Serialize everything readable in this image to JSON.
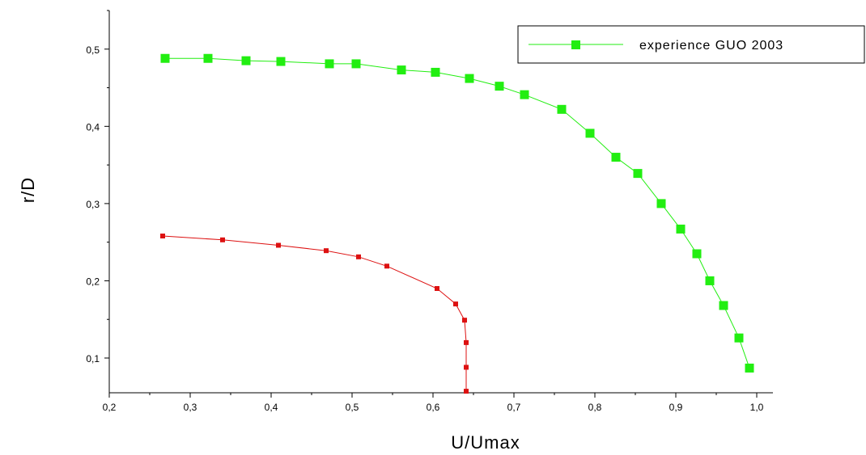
{
  "chart_data": {
    "type": "line",
    "xlabel": "U/Umax",
    "ylabel": "r/D",
    "xlim": [
      0.2,
      1.0
    ],
    "ylim": [
      0.055,
      0.55
    ],
    "x_ticks": [
      "0,2",
      "0,3",
      "0,4",
      "0,5",
      "0,6",
      "0,7",
      "0,8",
      "0,9",
      "1,0"
    ],
    "y_ticks": [
      "0,1",
      "0,2",
      "0,3",
      "0,4",
      "0,5"
    ],
    "grid": false,
    "legend_position": "top-right",
    "series": [
      {
        "name": "experience GUO 2003",
        "color": "#22ee11",
        "marker": "square-large",
        "points": [
          [
            0.269,
            0.488
          ],
          [
            0.322,
            0.488
          ],
          [
            0.369,
            0.485
          ],
          [
            0.412,
            0.484
          ],
          [
            0.472,
            0.481
          ],
          [
            0.505,
            0.481
          ],
          [
            0.561,
            0.473
          ],
          [
            0.603,
            0.47
          ],
          [
            0.645,
            0.462
          ],
          [
            0.682,
            0.452
          ],
          [
            0.713,
            0.441
          ],
          [
            0.759,
            0.422
          ],
          [
            0.794,
            0.391
          ],
          [
            0.826,
            0.36
          ],
          [
            0.853,
            0.339
          ],
          [
            0.882,
            0.3
          ],
          [
            0.906,
            0.267
          ],
          [
            0.926,
            0.235
          ],
          [
            0.942,
            0.2
          ],
          [
            0.959,
            0.168
          ],
          [
            0.978,
            0.126
          ],
          [
            0.991,
            0.087
          ]
        ]
      },
      {
        "name": "",
        "color": "#dd1111",
        "marker": "square-small",
        "points": [
          [
            0.266,
            0.258
          ],
          [
            0.34,
            0.253
          ],
          [
            0.409,
            0.246
          ],
          [
            0.468,
            0.239
          ],
          [
            0.508,
            0.231
          ],
          [
            0.543,
            0.219
          ],
          [
            0.605,
            0.19
          ],
          [
            0.628,
            0.17
          ],
          [
            0.639,
            0.149
          ],
          [
            0.641,
            0.12
          ],
          [
            0.641,
            0.088
          ],
          [
            0.641,
            0.057
          ]
        ]
      }
    ]
  }
}
